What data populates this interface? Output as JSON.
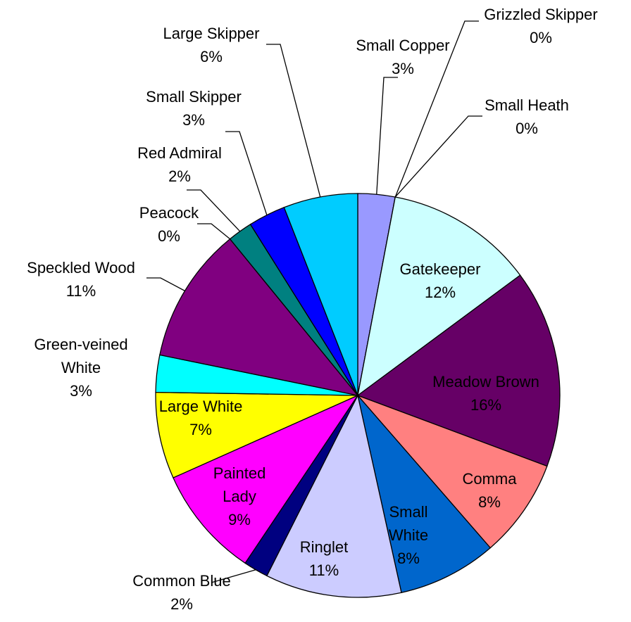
{
  "chart_data": {
    "type": "pie",
    "categories": [
      "Small Copper",
      "Grizzled Skipper",
      "Small Heath",
      "Gatekeeper",
      "Meadow Brown",
      "Comma",
      "Small White",
      "Ringlet",
      "Common Blue",
      "Painted Lady",
      "Large White",
      "Green-veined White",
      "Speckled Wood",
      "Peacock",
      "Red Admiral",
      "Small Skipper",
      "Large Skipper"
    ],
    "values": [
      3,
      0,
      0,
      12,
      16,
      8,
      8,
      11,
      2,
      9,
      7,
      3,
      11,
      0,
      2,
      3,
      6
    ],
    "value_labels": [
      "3%",
      "0%",
      "0%",
      "12%",
      "16%",
      "8%",
      "8%",
      "11%",
      "2%",
      "9%",
      "7%",
      "3%",
      "11%",
      "0%",
      "2%",
      "3%",
      "6%"
    ],
    "colors": [
      "#9999ff",
      "#993366",
      "#ffffcc",
      "#ccffff",
      "#660066",
      "#ff8080",
      "#0066cc",
      "#ccccff",
      "#000080",
      "#ff00ff",
      "#ffff00",
      "#00ffff",
      "#800080",
      "#800000",
      "#008080",
      "#0000ff",
      "#00ccff"
    ]
  }
}
